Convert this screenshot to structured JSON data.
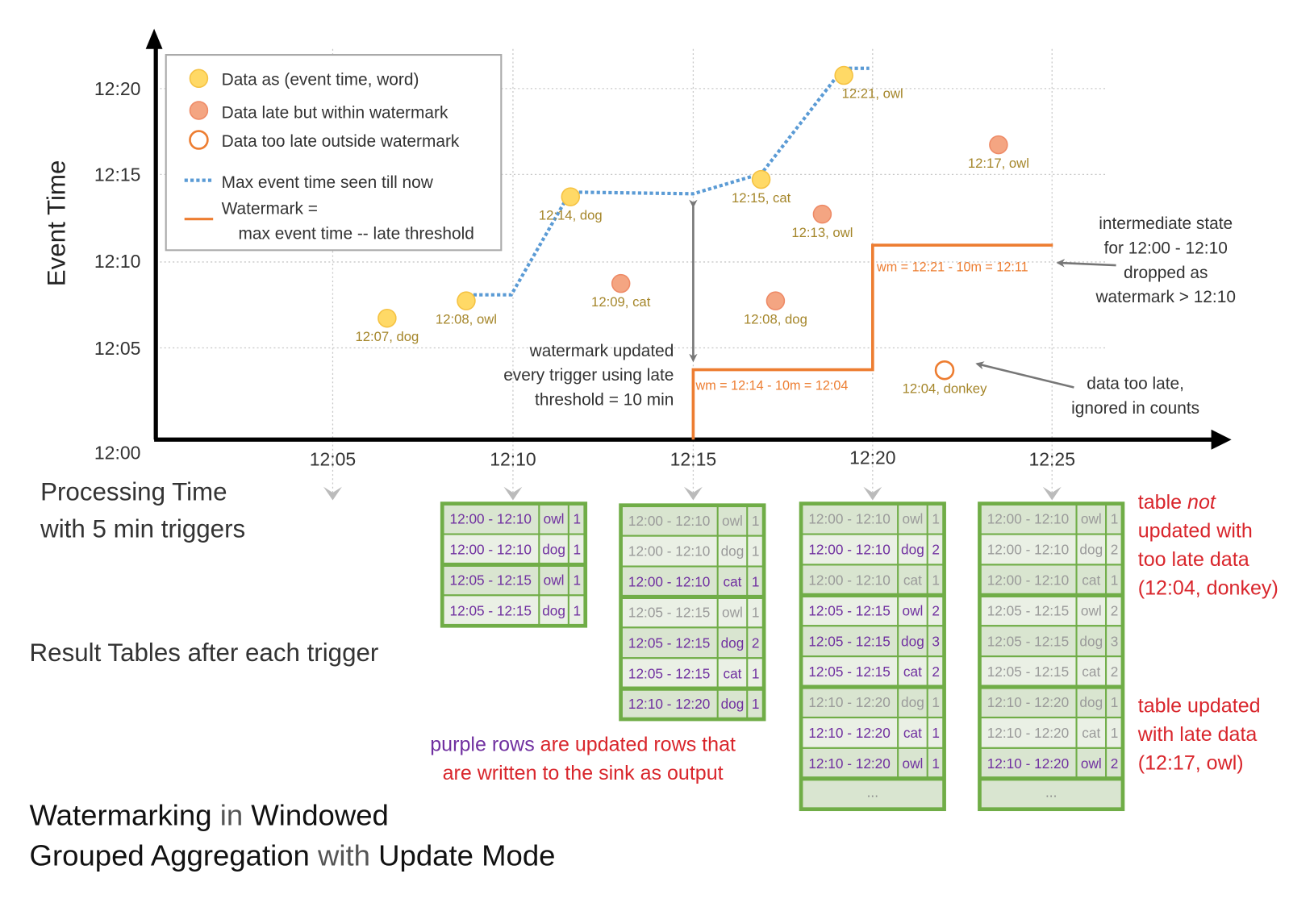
{
  "colors": {
    "on_time": "#ffd966",
    "late": "#f4a582",
    "too_late": "#ed7d31",
    "max_event_line": "#5b9bd5",
    "watermark_line": "#ed7d31",
    "table_border": "#70ad47",
    "updated_row_text": "#7030a0",
    "unchanged_row_text": "#9a9a9a",
    "note_text": "#d9262c"
  },
  "axes": {
    "y_label": "Event Time",
    "y_ticks": [
      "12:00",
      "12:05",
      "12:10",
      "12:15",
      "12:20"
    ],
    "x_ticks": [
      "12:05",
      "12:10",
      "12:15",
      "12:20",
      "12:25"
    ],
    "x_label_line1": "Processing Time",
    "x_label_line2": "with 5 min triggers"
  },
  "legend": {
    "on_time": "Data as (event time, word)",
    "late": "Data late but within watermark",
    "too_late": "Data too late outside watermark",
    "max_event": "Max event time seen till now",
    "watermark_line1": "Watermark =",
    "watermark_line2": "max event time -- late threshold"
  },
  "points": [
    {
      "label": "12:07, dog",
      "kind": "on-time",
      "event_min": 7,
      "processing_min": 6.5
    },
    {
      "label": "12:08, owl",
      "kind": "on-time",
      "event_min": 8,
      "processing_min": 8.7
    },
    {
      "label": "12:14, dog",
      "kind": "on-time",
      "event_min": 14,
      "processing_min": 11.6
    },
    {
      "label": "12:09, cat",
      "kind": "late",
      "event_min": 9,
      "processing_min": 13.0
    },
    {
      "label": "12:15, cat",
      "kind": "on-time",
      "event_min": 15,
      "processing_min": 16.9
    },
    {
      "label": "12:08, dog",
      "kind": "late",
      "event_min": 8,
      "processing_min": 17.3
    },
    {
      "label": "12:13, owl",
      "kind": "late",
      "event_min": 13,
      "processing_min": 18.6
    },
    {
      "label": "12:21, owl",
      "kind": "on-time",
      "event_min": 21,
      "processing_min": 19.2
    },
    {
      "label": "12:04, donkey",
      "kind": "too-late",
      "event_min": 4,
      "processing_min": 22.0
    },
    {
      "label": "12:17, owl",
      "kind": "late",
      "event_min": 17,
      "processing_min": 23.5
    }
  ],
  "watermark_labels": {
    "first": "wm = 12:14 - 10m = 12:04",
    "second": "wm = 12:21 - 10m = 12:11"
  },
  "annotations": {
    "watermark_updated": [
      "watermark updated",
      "every trigger using late",
      "threshold = 10 min"
    ],
    "intermediate_state": [
      "intermediate state",
      "for 12:00 - 12:10",
      "dropped as",
      "watermark > 12:10"
    ],
    "data_too_late": [
      "data too late,",
      "ignored in counts"
    ]
  },
  "result_tables_label": "Result Tables after each trigger",
  "tables": [
    {
      "rows": [
        {
          "window": "12:00 - 12:10",
          "word": "owl",
          "count": "1",
          "updated": true
        },
        {
          "window": "12:00 - 12:10",
          "word": "dog",
          "count": "1",
          "updated": true
        },
        {
          "window": "12:05 - 12:15",
          "word": "owl",
          "count": "1",
          "updated": true
        },
        {
          "window": "12:05 - 12:15",
          "word": "dog",
          "count": "1",
          "updated": true
        }
      ]
    },
    {
      "rows": [
        {
          "window": "12:00 - 12:10",
          "word": "owl",
          "count": "1",
          "updated": false
        },
        {
          "window": "12:00 - 12:10",
          "word": "dog",
          "count": "1",
          "updated": false
        },
        {
          "window": "12:00 - 12:10",
          "word": "cat",
          "count": "1",
          "updated": true
        },
        {
          "window": "12:05 - 12:15",
          "word": "owl",
          "count": "1",
          "updated": false
        },
        {
          "window": "12:05 - 12:15",
          "word": "dog",
          "count": "2",
          "updated": true
        },
        {
          "window": "12:05 - 12:15",
          "word": "cat",
          "count": "1",
          "updated": true
        },
        {
          "window": "12:10 - 12:20",
          "word": "dog",
          "count": "1",
          "updated": true
        }
      ]
    },
    {
      "rows": [
        {
          "window": "12:00 - 12:10",
          "word": "owl",
          "count": "1",
          "updated": false
        },
        {
          "window": "12:00 - 12:10",
          "word": "dog",
          "count": "2",
          "updated": true
        },
        {
          "window": "12:00 - 12:10",
          "word": "cat",
          "count": "1",
          "updated": false
        },
        {
          "window": "12:05 - 12:15",
          "word": "owl",
          "count": "2",
          "updated": true
        },
        {
          "window": "12:05 - 12:15",
          "word": "dog",
          "count": "3",
          "updated": true
        },
        {
          "window": "12:05 - 12:15",
          "word": "cat",
          "count": "2",
          "updated": true
        },
        {
          "window": "12:10 - 12:20",
          "word": "dog",
          "count": "1",
          "updated": false
        },
        {
          "window": "12:10 - 12:20",
          "word": "cat",
          "count": "1",
          "updated": true
        },
        {
          "window": "12:10 - 12:20",
          "word": "owl",
          "count": "1",
          "updated": true
        }
      ],
      "ellipsis": "..."
    },
    {
      "rows": [
        {
          "window": "12:00 - 12:10",
          "word": "owl",
          "count": "1",
          "updated": false
        },
        {
          "window": "12:00 - 12:10",
          "word": "dog",
          "count": "2",
          "updated": false
        },
        {
          "window": "12:00 - 12:10",
          "word": "cat",
          "count": "1",
          "updated": false
        },
        {
          "window": "12:05 - 12:15",
          "word": "owl",
          "count": "2",
          "updated": false
        },
        {
          "window": "12:05 - 12:15",
          "word": "dog",
          "count": "3",
          "updated": false
        },
        {
          "window": "12:05 - 12:15",
          "word": "cat",
          "count": "2",
          "updated": false
        },
        {
          "window": "12:10 - 12:20",
          "word": "dog",
          "count": "1",
          "updated": false
        },
        {
          "window": "12:10 - 12:20",
          "word": "cat",
          "count": "1",
          "updated": false
        },
        {
          "window": "12:10 - 12:20",
          "word": "owl",
          "count": "2",
          "updated": true
        }
      ],
      "ellipsis": "..."
    }
  ],
  "notes": {
    "purple_rows_a": "purple rows",
    "purple_rows_b": " are updated rows that",
    "purple_rows_line2": "are written to the sink as output",
    "not_updated": {
      "l1a": "table ",
      "l1b": "not",
      "l2": "updated with",
      "l3": "too late data",
      "l4": "(12:04, donkey)"
    },
    "updated": [
      "table updated",
      "with late data",
      "(12:17, owl)"
    ]
  },
  "title": {
    "w1": "Watermarking",
    "w2": " in ",
    "w3": "Windowed",
    "w4": "Grouped Aggregation",
    "w5": " with ",
    "w6": "Update Mode"
  }
}
